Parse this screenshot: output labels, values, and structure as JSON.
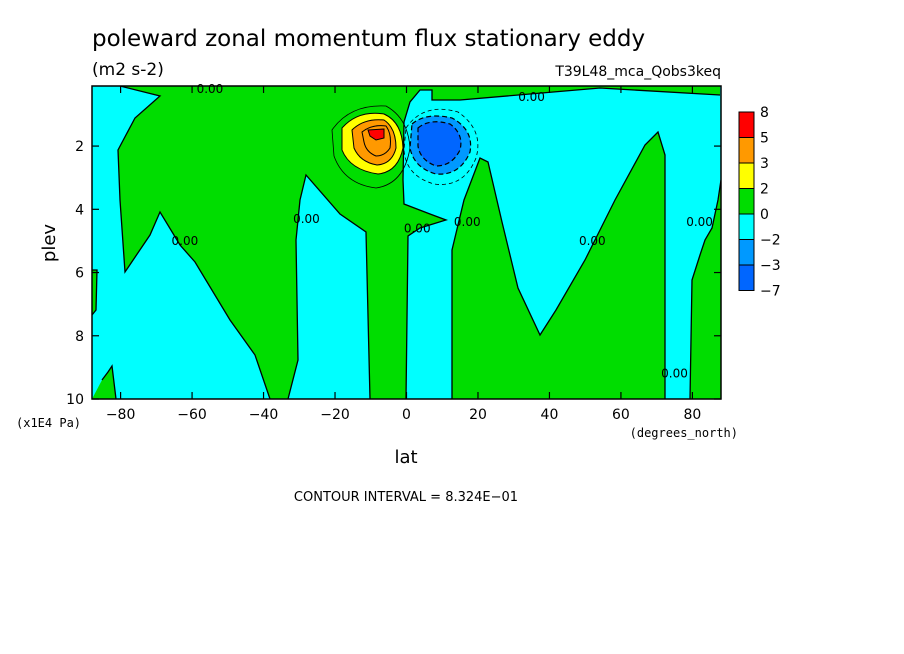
{
  "chart_data": {
    "type": "contour",
    "title": "poleward zonal momentum flux stationary eddy",
    "units": "(m2 s-2)",
    "run_label": "T39L48_mca_Qobs3keq",
    "xlabel": "lat",
    "xunits": "(degrees_north)",
    "ylabel": "plev",
    "yunits": "(x1E4 Pa)",
    "xlim": [
      -88,
      88
    ],
    "ylim": [
      0.1,
      10
    ],
    "y_inverted": true,
    "x_ticks": [
      -80,
      -60,
      -40,
      -20,
      0,
      20,
      40,
      60,
      80
    ],
    "x_tick_labels": [
      "−80",
      "−60",
      "−40",
      "−20",
      "0",
      "20",
      "40",
      "60",
      "80"
    ],
    "y_ticks": [
      2,
      4,
      6,
      8,
      10
    ],
    "y_tick_labels": [
      "2",
      "4",
      "6",
      "8",
      "10"
    ],
    "contour_interval_text": "CONTOUR INTERVAL = 8.324E−01",
    "legend": {
      "placement": "right",
      "levels": [
        "8",
        "5",
        "3",
        "2",
        "0",
        "−2",
        "−3",
        "−7"
      ],
      "colors": [
        "#ff0000",
        "#ff9900",
        "#ffff00",
        "#00dd00",
        "#00ffff",
        "#0099ff",
        "#0066ff"
      ]
    },
    "contour_labels": [
      {
        "text": "0.00",
        "lat": -55,
        "plev": 0.2
      },
      {
        "text": "0.00",
        "lat": 35,
        "plev": 0.45
      },
      {
        "text": "0.00",
        "lat": -62,
        "plev": 5.0
      },
      {
        "text": "0.00",
        "lat": -28,
        "plev": 4.3
      },
      {
        "text": "0.00",
        "lat": 3,
        "plev": 4.6
      },
      {
        "text": "0.00",
        "lat": 17,
        "plev": 4.4
      },
      {
        "text": "0.00",
        "lat": 52,
        "plev": 5.0
      },
      {
        "text": "0.00",
        "lat": 82,
        "plev": 4.4
      },
      {
        "text": "0.00",
        "lat": 75,
        "plev": 9.2
      }
    ],
    "extrema": [
      {
        "kind": "max",
        "lat": -8,
        "plev": 1.5,
        "value_band": "5 to 8"
      },
      {
        "kind": "min",
        "lat": 8,
        "plev": 1.6,
        "value_band": "−3 to −7"
      }
    ],
    "colors": {
      "positive_fill": "#00dd00",
      "negative_fill": "#00ffff"
    }
  }
}
